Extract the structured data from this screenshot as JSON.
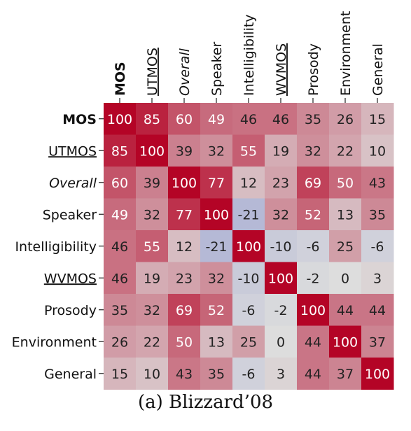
{
  "chart_data": {
    "type": "heatmap",
    "labels": [
      "MOS",
      "UTMOS",
      "Overall",
      "Speaker",
      "Intelligibility",
      "WVMOS",
      "Prosody",
      "Environment",
      "General"
    ],
    "label_styles": [
      "bold",
      "underline",
      "italic",
      "normal",
      "normal",
      "underline",
      "normal",
      "normal",
      "normal"
    ],
    "values": [
      [
        100,
        85,
        60,
        49,
        46,
        46,
        35,
        26,
        15
      ],
      [
        85,
        100,
        39,
        32,
        55,
        19,
        32,
        22,
        10
      ],
      [
        60,
        39,
        100,
        77,
        12,
        23,
        69,
        50,
        43
      ],
      [
        49,
        32,
        77,
        100,
        -21,
        32,
        52,
        13,
        35
      ],
      [
        46,
        55,
        12,
        -21,
        100,
        -10,
        -6,
        25,
        -6
      ],
      [
        46,
        19,
        23,
        32,
        -10,
        100,
        -2,
        0,
        3
      ],
      [
        35,
        32,
        69,
        52,
        -6,
        -2,
        100,
        44,
        44
      ],
      [
        26,
        22,
        50,
        13,
        25,
        0,
        44,
        100,
        37
      ],
      [
        15,
        10,
        43,
        35,
        -6,
        3,
        44,
        37,
        100
      ]
    ],
    "color_range": [
      -100,
      100
    ],
    "colors": {
      "negative": "#3b4cc0",
      "neutral": "#dddddd",
      "positive": "#b40426"
    },
    "caption": "(a) Blizzard’08"
  }
}
